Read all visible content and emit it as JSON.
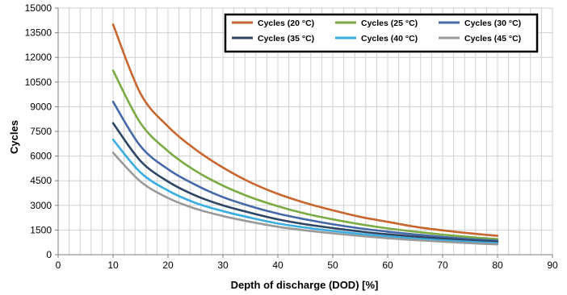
{
  "chart_data": {
    "type": "line",
    "title": "",
    "xlabel": "Depth of discharge (DOD) [%]",
    "ylabel": "Cycles",
    "xlim": [
      0,
      90
    ],
    "ylim": [
      0,
      15000
    ],
    "xticks": [
      0,
      10,
      20,
      30,
      40,
      50,
      60,
      70,
      80,
      90
    ],
    "yticks": [
      0,
      1500,
      3000,
      4500,
      6000,
      7500,
      9000,
      10500,
      12000,
      13500,
      15000
    ],
    "grid": true,
    "legend_position": "top-right",
    "x": [
      10,
      15,
      20,
      25,
      30,
      35,
      40,
      45,
      50,
      55,
      60,
      65,
      70,
      75,
      80
    ],
    "series": [
      {
        "name": "Cycles (20 °C)",
        "color": "#c8662e",
        "values": [
          14000,
          9800,
          7800,
          6400,
          5300,
          4400,
          3700,
          3150,
          2700,
          2300,
          2000,
          1700,
          1480,
          1300,
          1150
        ]
      },
      {
        "name": "Cycles (25 °C)",
        "color": "#7aaa42",
        "values": [
          11200,
          8000,
          6300,
          5100,
          4200,
          3500,
          2950,
          2500,
          2150,
          1850,
          1600,
          1400,
          1220,
          1070,
          950
        ]
      },
      {
        "name": "Cycles (30 °C)",
        "color": "#4568a8",
        "values": [
          9300,
          6600,
          5200,
          4250,
          3500,
          2950,
          2500,
          2150,
          1850,
          1600,
          1400,
          1230,
          1080,
          950,
          850
        ]
      },
      {
        "name": "Cycles (35 °C)",
        "color": "#2e4663",
        "values": [
          8000,
          5700,
          4450,
          3600,
          3000,
          2550,
          2150,
          1850,
          1620,
          1410,
          1240,
          1100,
          970,
          870,
          780
        ]
      },
      {
        "name": "Cycles (40 °C)",
        "color": "#3aaee0",
        "values": [
          7000,
          5000,
          3900,
          3150,
          2650,
          2250,
          1900,
          1650,
          1440,
          1260,
          1110,
          980,
          870,
          780,
          700
        ]
      },
      {
        "name": "Cycles (45 °C)",
        "color": "#999999",
        "values": [
          6200,
          4450,
          3450,
          2800,
          2350,
          2000,
          1700,
          1480,
          1300,
          1140,
          1000,
          890,
          790,
          700,
          630
        ]
      }
    ]
  }
}
